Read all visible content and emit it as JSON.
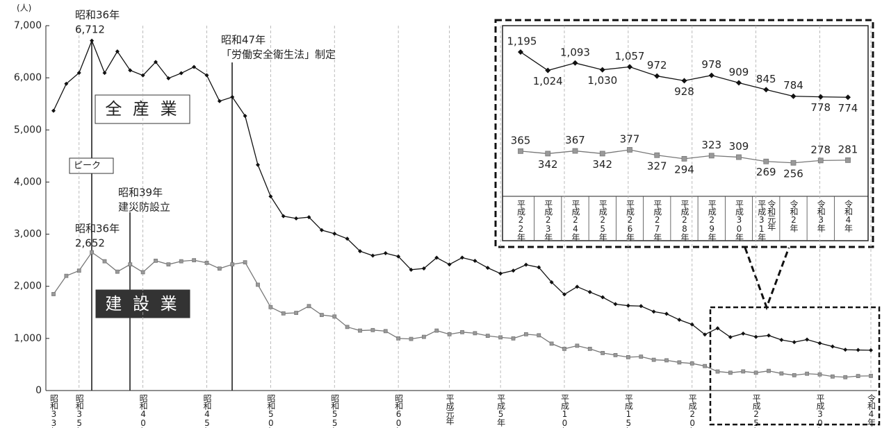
{
  "chart_data": [
    {
      "type": "line",
      "y_unit": "(人)",
      "categories": [
        "昭和33年",
        null,
        "昭和35年",
        null,
        null,
        null,
        null,
        "昭和40年",
        null,
        null,
        null,
        null,
        "昭和45年",
        null,
        null,
        null,
        null,
        "昭和50年",
        null,
        null,
        null,
        null,
        "昭和55年",
        null,
        null,
        null,
        null,
        "昭和60年",
        null,
        null,
        null,
        "平成元年",
        null,
        null,
        null,
        "平成5年",
        null,
        null,
        null,
        null,
        "平成10年",
        null,
        null,
        null,
        null,
        "平成15年",
        null,
        null,
        null,
        null,
        "平成20年",
        null,
        null,
        null,
        null,
        "平成25年",
        null,
        null,
        null,
        null,
        "平成30年",
        null,
        null,
        null,
        "令和4年"
      ],
      "series": [
        {
          "name": "全 産 業",
          "color": "#111111",
          "marker": "diamond",
          "values": [
            5368,
            5885,
            6095,
            6712,
            6093,
            6506,
            6143,
            6046,
            6303,
            5990,
            6088,
            6208,
            6048,
            5552,
            5631,
            5269,
            4330,
            3725,
            3345,
            3302,
            3326,
            3077,
            3009,
            2912,
            2674,
            2588,
            2635,
            2572,
            2318,
            2342,
            2549,
            2419,
            2550,
            2489,
            2354,
            2245,
            2301,
            2414,
            2363,
            2078,
            1844,
            1992,
            1889,
            1790,
            1658,
            1628,
            1620,
            1514,
            1472,
            1357,
            1268,
            1075,
            1195,
            1024,
            1093,
            1030,
            1057,
            972,
            928,
            978,
            909,
            845,
            784,
            778,
            774
          ]
        },
        {
          "name": "建 設 業",
          "color": "#777777",
          "marker": "square",
          "values": [
            1850,
            2200,
            2300,
            2652,
            2480,
            2280,
            2420,
            2270,
            2490,
            2420,
            2480,
            2500,
            2450,
            2340,
            2420,
            2460,
            2030,
            1600,
            1480,
            1490,
            1620,
            1450,
            1420,
            1220,
            1150,
            1160,
            1140,
            1000,
            990,
            1030,
            1150,
            1080,
            1120,
            1100,
            1050,
            1020,
            1000,
            1080,
            1060,
            900,
            800,
            860,
            800,
            720,
            680,
            640,
            650,
            590,
            580,
            540,
            520,
            470,
            365,
            342,
            367,
            342,
            377,
            327,
            294,
            323,
            309,
            269,
            256,
            278,
            281
          ]
        }
      ],
      "ylim": [
        0,
        7000
      ],
      "yticks": [
        0,
        {
          "value": 1000,
          "label": "1,000"
        },
        {
          "value": 2000,
          "label": "2,000"
        },
        {
          "value": 3000,
          "label": "3,000"
        },
        {
          "value": 4000,
          "label": "4,000"
        },
        {
          "value": 5000,
          "label": "5,000"
        },
        {
          "value": 6000,
          "label": "6,000"
        },
        {
          "value": 7000,
          "label": "7,000"
        }
      ],
      "grid": true,
      "annotations": [
        {
          "lines": [
            "昭和36年",
            "6,712"
          ]
        },
        {
          "lines": [
            "昭和47年",
            "「労働安全衛生法」制定"
          ]
        },
        {
          "lines": [
            "ピーク"
          ]
        },
        {
          "lines": [
            "昭和39年",
            "建災防設立"
          ]
        },
        {
          "lines": [
            "昭和36年",
            "2,652"
          ]
        }
      ]
    },
    {
      "type": "line",
      "categories": [
        "平成22年",
        "平成23年",
        "平成24年",
        "平成25年",
        "平成26年",
        "平成27年",
        "平成28年",
        "平成29年",
        "平成30年",
        [
          "平成31年",
          "令和元年"
        ],
        "令和2年",
        "令和3年",
        "令和4年"
      ],
      "series": [
        {
          "name": "全 産 業",
          "color": "#111111",
          "marker": "diamond",
          "values": [
            1195,
            1024,
            1093,
            1030,
            1057,
            972,
            928,
            978,
            909,
            845,
            784,
            778,
            774
          ],
          "value_labels": [
            "1,195",
            "1,024",
            "1,093",
            "1,030",
            "1,057",
            "972",
            "928",
            "978",
            "909",
            "845",
            "784",
            "778",
            "774"
          ]
        },
        {
          "name": "建 設 業",
          "color": "#777777",
          "marker": "square",
          "values": [
            365,
            342,
            367,
            342,
            377,
            327,
            294,
            323,
            309,
            269,
            256,
            278,
            281
          ],
          "value_labels": [
            "365",
            "342",
            "367",
            "342",
            "377",
            "327",
            "294",
            "323",
            "309",
            "269",
            "256",
            "278",
            "281"
          ]
        }
      ]
    }
  ]
}
